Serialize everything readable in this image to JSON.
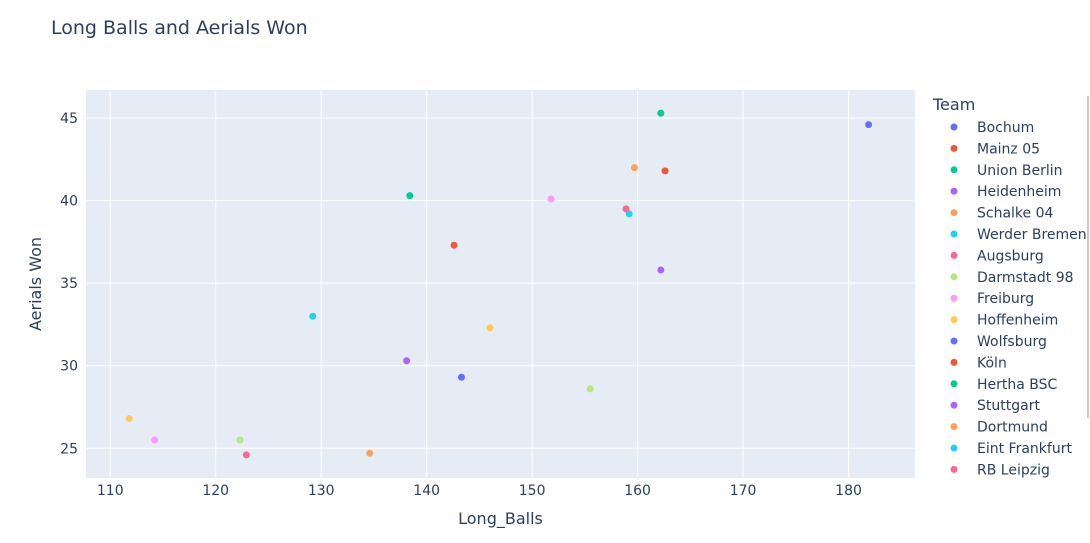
{
  "chart_data": {
    "type": "scatter",
    "title": "Long Balls and Aerials Won",
    "xlabel": "Long_Balls",
    "ylabel": "Aerials Won",
    "xlim": [
      107.7,
      186.3
    ],
    "ylim": [
      23.2,
      46.7
    ],
    "xticks": [
      110,
      120,
      130,
      140,
      150,
      160,
      170,
      180
    ],
    "yticks": [
      25,
      30,
      35,
      40,
      45
    ],
    "grid": true,
    "legend_title": "Team",
    "legend_position": "right",
    "series": [
      {
        "name": "Bochum",
        "color": "#636efa",
        "points": [
          {
            "x": 181.9,
            "y": 44.6
          }
        ]
      },
      {
        "name": "Mainz 05",
        "color": "#EF553B",
        "points": [
          {
            "x": 142.6,
            "y": 37.3
          }
        ]
      },
      {
        "name": "Union Berlin",
        "color": "#00cc96",
        "points": [
          {
            "x": 162.2,
            "y": 45.3
          }
        ]
      },
      {
        "name": "Heidenheim",
        "color": "#ab63fa",
        "points": [
          {
            "x": 162.2,
            "y": 35.8
          }
        ]
      },
      {
        "name": "Schalke 04",
        "color": "#FFA15A",
        "points": [
          {
            "x": 134.6,
            "y": 24.7
          }
        ]
      },
      {
        "name": "Werder Bremen",
        "color": "#19d3f3",
        "points": [
          {
            "x": 159.2,
            "y": 39.2
          }
        ]
      },
      {
        "name": "Augsburg",
        "color": "#FF6692",
        "points": [
          {
            "x": 158.9,
            "y": 39.5
          }
        ]
      },
      {
        "name": "Darmstadt 98",
        "color": "#B6E880",
        "points": [
          {
            "x": 155.5,
            "y": 28.6
          }
        ]
      },
      {
        "name": "Freiburg",
        "color": "#FF97FF",
        "points": [
          {
            "x": 151.8,
            "y": 40.1
          }
        ]
      },
      {
        "name": "Hoffenheim",
        "color": "#FECB52",
        "points": [
          {
            "x": 146.0,
            "y": 32.3
          }
        ]
      },
      {
        "name": "Wolfsburg",
        "color": "#636efa",
        "points": [
          {
            "x": 143.3,
            "y": 29.3
          }
        ]
      },
      {
        "name": "Köln",
        "color": "#EF553B",
        "points": [
          {
            "x": 162.6,
            "y": 41.8
          }
        ]
      },
      {
        "name": "Hertha BSC",
        "color": "#00cc96",
        "points": [
          {
            "x": 138.4,
            "y": 40.3
          }
        ]
      },
      {
        "name": "Stuttgart",
        "color": "#ab63fa",
        "points": [
          {
            "x": 138.1,
            "y": 30.3
          }
        ]
      },
      {
        "name": "Dortmund",
        "color": "#FFA15A",
        "points": [
          {
            "x": 159.7,
            "y": 42.0
          }
        ]
      },
      {
        "name": "Eint Frankfurt",
        "color": "#19d3f3",
        "points": [
          {
            "x": 129.2,
            "y": 33.0
          }
        ]
      },
      {
        "name": "RB Leipzig",
        "color": "#FF6692",
        "points": [
          {
            "x": 122.9,
            "y": 24.6
          }
        ]
      },
      {
        "name": "",
        "color": "#B6E880",
        "points": [
          {
            "x": 122.3,
            "y": 25.5
          }
        ]
      },
      {
        "name": "",
        "color": "#FF97FF",
        "points": [
          {
            "x": 114.2,
            "y": 25.5
          }
        ]
      },
      {
        "name": "",
        "color": "#FECB52",
        "points": [
          {
            "x": 111.8,
            "y": 26.8
          }
        ]
      }
    ]
  }
}
